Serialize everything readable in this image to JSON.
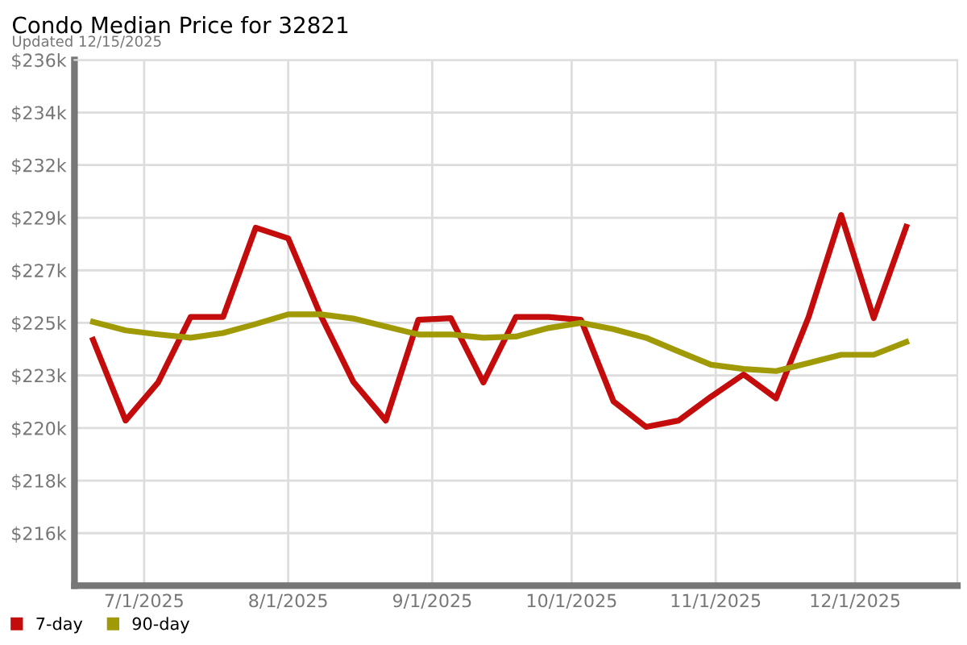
{
  "chart_data": {
    "type": "line",
    "title": "Condo Median Price for 32821",
    "subtitle": "Updated 12/15/2025",
    "x": [
      "2025-06-20",
      "2025-06-27",
      "2025-07-04",
      "2025-07-11",
      "2025-07-18",
      "2025-07-25",
      "2025-08-01",
      "2025-08-08",
      "2025-08-15",
      "2025-08-22",
      "2025-08-29",
      "2025-09-05",
      "2025-09-12",
      "2025-09-19",
      "2025-09-26",
      "2025-10-03",
      "2025-10-10",
      "2025-10-17",
      "2025-10-24",
      "2025-10-31",
      "2025-11-07",
      "2025-11-14",
      "2025-11-21",
      "2025-11-28",
      "2025-12-05",
      "2025-12-12"
    ],
    "series": [
      {
        "name": "7-day",
        "color": "#c40c0c",
        "values": [
          224.17,
          220.76,
          222.37,
          225.14,
          225.14,
          228.91,
          228.46,
          225.2,
          222.4,
          220.76,
          225.02,
          225.09,
          222.37,
          225.14,
          225.14,
          225.02,
          221.57,
          220.49,
          220.76,
          221.77,
          222.71,
          221.7,
          225.14,
          229.45,
          225.09,
          228.95
        ]
      },
      {
        "name": "90-day",
        "color": "#a09a06",
        "values": [
          224.93,
          224.57,
          224.4,
          224.26,
          224.46,
          224.84,
          225.25,
          225.25,
          225.07,
          224.73,
          224.4,
          224.4,
          224.26,
          224.31,
          224.67,
          224.89,
          224.62,
          224.26,
          223.68,
          223.12,
          222.94,
          222.85,
          223.19,
          223.54,
          223.54,
          224.08
        ]
      }
    ],
    "xlim": [
      "2025-06-16",
      "2025-12-23"
    ],
    "xticks": [
      {
        "value": "2025-07-01",
        "label": "7/1/2025"
      },
      {
        "value": "2025-08-01",
        "label": "8/1/2025"
      },
      {
        "value": "2025-09-01",
        "label": "9/1/2025"
      },
      {
        "value": "2025-10-01",
        "label": "10/1/2025"
      },
      {
        "value": "2025-11-01",
        "label": "11/1/2025"
      },
      {
        "value": "2025-12-01",
        "label": "12/1/2025"
      }
    ],
    "ylim": [
      213.78,
      236
    ],
    "yticks": [
      {
        "value": 216,
        "label": "$216k"
      },
      {
        "value": 218.22,
        "label": "$218k"
      },
      {
        "value": 220.44,
        "label": "$220k"
      },
      {
        "value": 222.67,
        "label": "$223k"
      },
      {
        "value": 224.89,
        "label": "$225k"
      },
      {
        "value": 227.11,
        "label": "$227k"
      },
      {
        "value": 229.33,
        "label": "$229k"
      },
      {
        "value": 231.56,
        "label": "$232k"
      },
      {
        "value": 233.78,
        "label": "$234k"
      },
      {
        "value": 236,
        "label": "$236k"
      }
    ],
    "grid": true,
    "legend": "bottom left",
    "marker": "none",
    "line_style": "solid"
  }
}
